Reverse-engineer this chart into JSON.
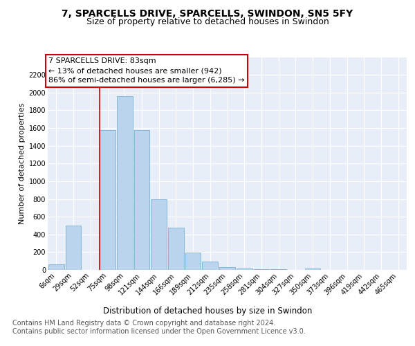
{
  "title": "7, SPARCELLS DRIVE, SPARCELLS, SWINDON, SN5 5FY",
  "subtitle": "Size of property relative to detached houses in Swindon",
  "xlabel": "Distribution of detached houses by size in Swindon",
  "ylabel": "Number of detached properties",
  "categories": [
    "6sqm",
    "29sqm",
    "52sqm",
    "75sqm",
    "98sqm",
    "121sqm",
    "144sqm",
    "166sqm",
    "189sqm",
    "212sqm",
    "235sqm",
    "258sqm",
    "281sqm",
    "304sqm",
    "327sqm",
    "350sqm",
    "373sqm",
    "396sqm",
    "419sqm",
    "442sqm",
    "465sqm"
  ],
  "values": [
    60,
    500,
    2,
    1580,
    1960,
    1580,
    800,
    480,
    195,
    90,
    30,
    15,
    8,
    4,
    2,
    15,
    1,
    1,
    1,
    1,
    1
  ],
  "bar_color": "#bad4ee",
  "bar_edge_color": "#7bafd4",
  "vline_bin_index": 3,
  "vline_color": "#cc0000",
  "annotation_line1": "7 SPARCELLS DRIVE: 83sqm",
  "annotation_line2": "← 13% of detached houses are smaller (942)",
  "annotation_line3": "86% of semi-detached houses are larger (6,285) →",
  "annotation_box_facecolor": "#ffffff",
  "annotation_box_edgecolor": "#cc0000",
  "footer_line1": "Contains HM Land Registry data © Crown copyright and database right 2024.",
  "footer_line2": "Contains public sector information licensed under the Open Government Licence v3.0.",
  "ylim": [
    0,
    2400
  ],
  "yticks": [
    0,
    200,
    400,
    600,
    800,
    1000,
    1200,
    1400,
    1600,
    1800,
    2000,
    2200
  ],
  "bg_color": "#e8eef8",
  "title_fontsize": 10,
  "subtitle_fontsize": 9,
  "xlabel_fontsize": 8.5,
  "ylabel_fontsize": 8,
  "tick_fontsize": 7,
  "ann_fontsize": 8,
  "footer_fontsize": 7
}
